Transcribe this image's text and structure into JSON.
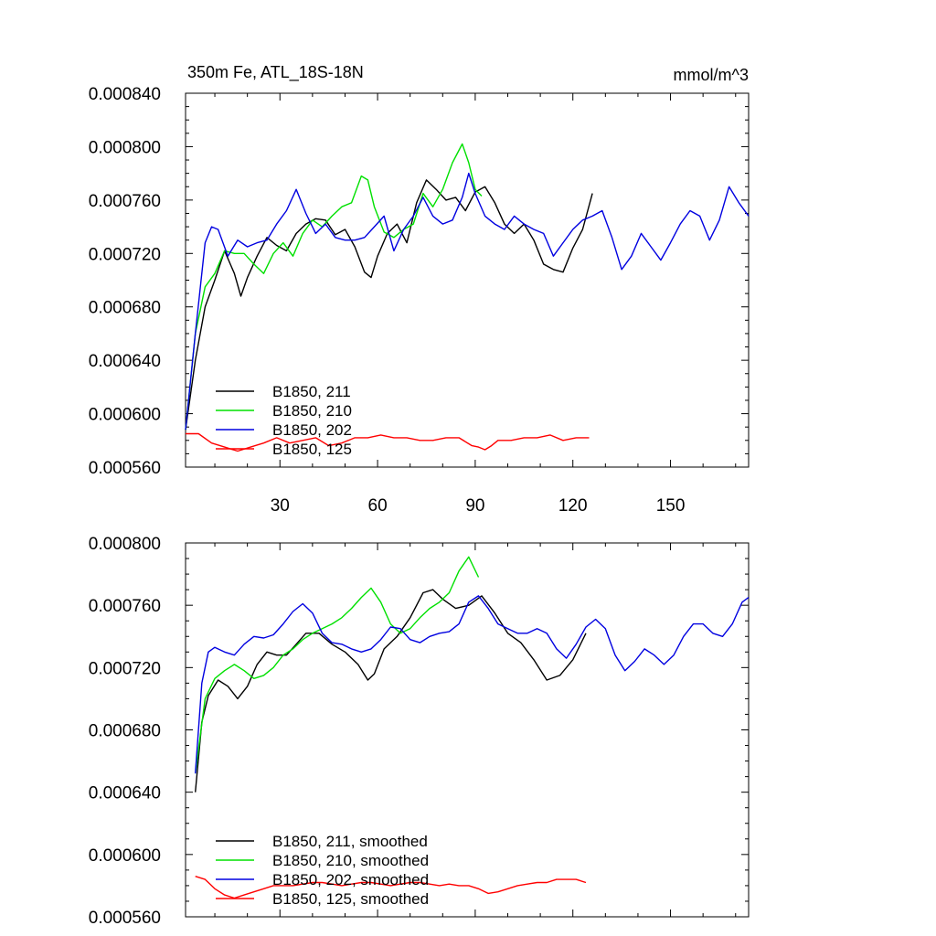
{
  "chart_data": [
    {
      "type": "line",
      "title": "350m Fe, ATL_18S-18N",
      "units": "mmol/m^3",
      "xlim": [
        1,
        174
      ],
      "ylim": [
        0.00056,
        0.00084
      ],
      "xticks": [
        30,
        60,
        90,
        120,
        150
      ],
      "xtick_labels": [
        "30",
        "60",
        "90",
        "120",
        "150"
      ],
      "yticks": [
        0.00056,
        0.0006,
        0.00064,
        0.00068,
        0.00072,
        0.00076,
        0.0008,
        0.00084
      ],
      "ytick_labels": [
        "0.000560",
        "0.000600",
        "0.000640",
        "0.000680",
        "0.000720",
        "0.000760",
        "0.000800",
        "0.000840"
      ],
      "legend_position": "lower-left",
      "series": [
        {
          "name": "B1850, 211",
          "color": "#000000",
          "x": [
            1,
            4,
            7,
            10,
            13,
            16,
            18,
            20,
            23,
            26,
            29,
            32,
            35,
            38,
            41,
            44,
            47,
            50,
            53,
            56,
            58,
            60,
            63,
            66,
            69,
            72,
            75,
            78,
            81,
            84,
            87,
            90,
            93,
            96,
            99,
            102,
            105,
            108,
            111,
            114,
            117,
            120,
            123,
            126
          ],
          "y": [
            0.000588,
            0.00064,
            0.00068,
            0.0007,
            0.000722,
            0.000705,
            0.000688,
            0.000702,
            0.000718,
            0.000732,
            0.000726,
            0.000722,
            0.000735,
            0.000742,
            0.000746,
            0.000745,
            0.000734,
            0.000738,
            0.000725,
            0.000706,
            0.000702,
            0.000718,
            0.000735,
            0.000742,
            0.000728,
            0.000758,
            0.000775,
            0.000768,
            0.00076,
            0.000762,
            0.000752,
            0.000766,
            0.00077,
            0.000758,
            0.000742,
            0.000735,
            0.000742,
            0.00073,
            0.000712,
            0.000708,
            0.000706,
            0.000724,
            0.000738,
            0.000765
          ]
        },
        {
          "name": "B1850, 210",
          "color": "#00e000",
          "x": [
            1,
            4,
            7,
            10,
            13,
            16,
            19,
            22,
            25,
            28,
            31,
            34,
            37,
            40,
            43,
            46,
            49,
            52,
            55,
            57,
            59,
            62,
            65,
            68,
            71,
            74,
            77,
            80,
            83,
            86,
            88,
            90,
            92
          ],
          "y": [
            0.000588,
            0.00066,
            0.000695,
            0.000705,
            0.000722,
            0.00072,
            0.00072,
            0.000712,
            0.000705,
            0.00072,
            0.000728,
            0.000718,
            0.000735,
            0.000745,
            0.00074,
            0.000748,
            0.000755,
            0.000758,
            0.000778,
            0.000775,
            0.000755,
            0.000736,
            0.000732,
            0.000738,
            0.000742,
            0.000765,
            0.000755,
            0.000768,
            0.000788,
            0.000802,
            0.000788,
            0.000768,
            0.000763
          ]
        },
        {
          "name": "B1850, 202",
          "color": "#0000e0",
          "x": [
            1,
            4,
            7,
            9,
            11,
            14,
            17,
            20,
            23,
            26,
            29,
            32,
            35,
            38,
            41,
            44,
            47,
            50,
            53,
            56,
            59,
            62,
            65,
            68,
            71,
            74,
            77,
            80,
            83,
            86,
            88,
            90,
            93,
            96,
            99,
            102,
            105,
            108,
            111,
            114,
            117,
            120,
            123,
            126,
            129,
            132,
            135,
            138,
            141,
            144,
            147,
            150,
            153,
            156,
            159,
            162,
            165,
            168,
            171,
            174
          ],
          "y": [
            0.000588,
            0.00066,
            0.000728,
            0.00074,
            0.000738,
            0.000718,
            0.00073,
            0.000725,
            0.000728,
            0.00073,
            0.000742,
            0.000752,
            0.000768,
            0.00075,
            0.000735,
            0.000742,
            0.000732,
            0.00073,
            0.00073,
            0.000732,
            0.00074,
            0.000748,
            0.000722,
            0.000738,
            0.000748,
            0.000762,
            0.000748,
            0.000742,
            0.000745,
            0.000762,
            0.00078,
            0.000765,
            0.000748,
            0.000742,
            0.000738,
            0.000748,
            0.000742,
            0.000738,
            0.000735,
            0.000718,
            0.000728,
            0.000738,
            0.000745,
            0.000748,
            0.000752,
            0.000732,
            0.000708,
            0.000718,
            0.000735,
            0.000725,
            0.000715,
            0.000728,
            0.000742,
            0.000752,
            0.000748,
            0.00073,
            0.000745,
            0.00077,
            0.000758,
            0.000748
          ]
        },
        {
          "name": "B1850, 125",
          "color": "#ff0000",
          "x": [
            1,
            5,
            9,
            13,
            17,
            21,
            25,
            29,
            33,
            37,
            41,
            45,
            49,
            53,
            57,
            61,
            65,
            69,
            73,
            77,
            81,
            85,
            89,
            91,
            93,
            95,
            97,
            101,
            105,
            109,
            113,
            117,
            121,
            125
          ],
          "y": [
            0.000585,
            0.000585,
            0.000578,
            0.000575,
            0.000572,
            0.000575,
            0.000578,
            0.000582,
            0.000578,
            0.00058,
            0.000582,
            0.000576,
            0.000578,
            0.000582,
            0.000582,
            0.000584,
            0.000582,
            0.000582,
            0.00058,
            0.00058,
            0.000582,
            0.000582,
            0.000576,
            0.000575,
            0.000573,
            0.000576,
            0.00058,
            0.00058,
            0.000582,
            0.000582,
            0.000584,
            0.00058,
            0.000582,
            0.000582
          ]
        }
      ]
    },
    {
      "type": "line",
      "title": "",
      "xlim": [
        1,
        174
      ],
      "ylim": [
        0.00056,
        0.0008
      ],
      "yticks": [
        0.00056,
        0.0006,
        0.00064,
        0.00068,
        0.00072,
        0.00076,
        0.0008
      ],
      "ytick_labels": [
        "0.000560",
        "0.000600",
        "0.000640",
        "0.000680",
        "0.000720",
        "0.000760",
        "0.000800"
      ],
      "legend_position": "lower-left",
      "series": [
        {
          "name": "B1850, 211, smoothed",
          "color": "#000000",
          "x": [
            4,
            6,
            8,
            11,
            14,
            17,
            20,
            23,
            26,
            29,
            32,
            35,
            38,
            42,
            46,
            50,
            54,
            57,
            59,
            62,
            66,
            70,
            74,
            77,
            80,
            84,
            88,
            92,
            96,
            100,
            104,
            108,
            112,
            116,
            120,
            124
          ],
          "y": [
            0.00064,
            0.000685,
            0.000702,
            0.000712,
            0.000708,
            0.0007,
            0.000708,
            0.000722,
            0.00073,
            0.000728,
            0.000728,
            0.000735,
            0.000742,
            0.000742,
            0.000735,
            0.00073,
            0.000722,
            0.000712,
            0.000716,
            0.000732,
            0.00074,
            0.000752,
            0.000768,
            0.00077,
            0.000764,
            0.000758,
            0.00076,
            0.000766,
            0.000755,
            0.000742,
            0.000736,
            0.000725,
            0.000712,
            0.000715,
            0.000725,
            0.000742
          ]
        },
        {
          "name": "B1850, 210, smoothed",
          "color": "#00e000",
          "x": [
            4,
            7,
            10,
            13,
            16,
            19,
            22,
            25,
            28,
            31,
            34,
            37,
            40,
            43,
            46,
            49,
            52,
            55,
            58,
            61,
            64,
            67,
            70,
            73,
            76,
            79,
            82,
            85,
            88,
            91
          ],
          "y": [
            0.000652,
            0.0007,
            0.000713,
            0.000718,
            0.000722,
            0.000718,
            0.000713,
            0.000715,
            0.00072,
            0.000728,
            0.000732,
            0.000738,
            0.000742,
            0.000745,
            0.000748,
            0.000752,
            0.000758,
            0.000765,
            0.000771,
            0.000762,
            0.000748,
            0.000742,
            0.000745,
            0.000752,
            0.000758,
            0.000762,
            0.000768,
            0.000782,
            0.000791,
            0.000778
          ]
        },
        {
          "name": "B1850, 202, smoothed",
          "color": "#0000e0",
          "x": [
            4,
            6,
            8,
            10,
            13,
            16,
            19,
            22,
            25,
            28,
            31,
            34,
            37,
            40,
            43,
            46,
            49,
            52,
            55,
            58,
            61,
            64,
            67,
            70,
            73,
            76,
            79,
            82,
            85,
            88,
            91,
            94,
            97,
            100,
            103,
            106,
            109,
            112,
            115,
            118,
            121,
            124,
            127,
            130,
            133,
            136,
            139,
            142,
            145,
            148,
            151,
            154,
            157,
            160,
            163,
            166,
            169,
            172,
            174
          ],
          "y": [
            0.000652,
            0.00071,
            0.00073,
            0.000733,
            0.00073,
            0.000728,
            0.000735,
            0.00074,
            0.000739,
            0.000741,
            0.000748,
            0.000756,
            0.000761,
            0.000755,
            0.000742,
            0.000736,
            0.000735,
            0.000732,
            0.00073,
            0.000732,
            0.000738,
            0.000746,
            0.000745,
            0.000738,
            0.000736,
            0.00074,
            0.000742,
            0.000743,
            0.000748,
            0.000762,
            0.000766,
            0.000758,
            0.000748,
            0.000745,
            0.000742,
            0.000742,
            0.000745,
            0.000742,
            0.000732,
            0.000726,
            0.000735,
            0.000746,
            0.000751,
            0.000745,
            0.000728,
            0.000718,
            0.000724,
            0.000732,
            0.000728,
            0.000722,
            0.000728,
            0.00074,
            0.000748,
            0.000748,
            0.000742,
            0.00074,
            0.000748,
            0.000762,
            0.000765
          ]
        },
        {
          "name": "B1850, 125, smoothed",
          "color": "#ff0000",
          "x": [
            4,
            7,
            10,
            13,
            16,
            19,
            22,
            25,
            28,
            31,
            34,
            37,
            40,
            43,
            46,
            49,
            52,
            55,
            58,
            61,
            64,
            67,
            70,
            73,
            76,
            79,
            82,
            85,
            88,
            91,
            94,
            97,
            100,
            103,
            106,
            109,
            112,
            115,
            118,
            121,
            124
          ],
          "y": [
            0.000586,
            0.000584,
            0.000578,
            0.000574,
            0.000572,
            0.000574,
            0.000576,
            0.000578,
            0.00058,
            0.00058,
            0.00058,
            0.000581,
            0.000582,
            0.000582,
            0.000581,
            0.00058,
            0.000581,
            0.000582,
            0.000582,
            0.000581,
            0.00058,
            0.000581,
            0.000582,
            0.000582,
            0.000581,
            0.00058,
            0.000581,
            0.00058,
            0.00058,
            0.000578,
            0.000575,
            0.000576,
            0.000578,
            0.00058,
            0.000581,
            0.000582,
            0.000582,
            0.000584,
            0.000584,
            0.000584,
            0.000582
          ]
        }
      ]
    }
  ]
}
